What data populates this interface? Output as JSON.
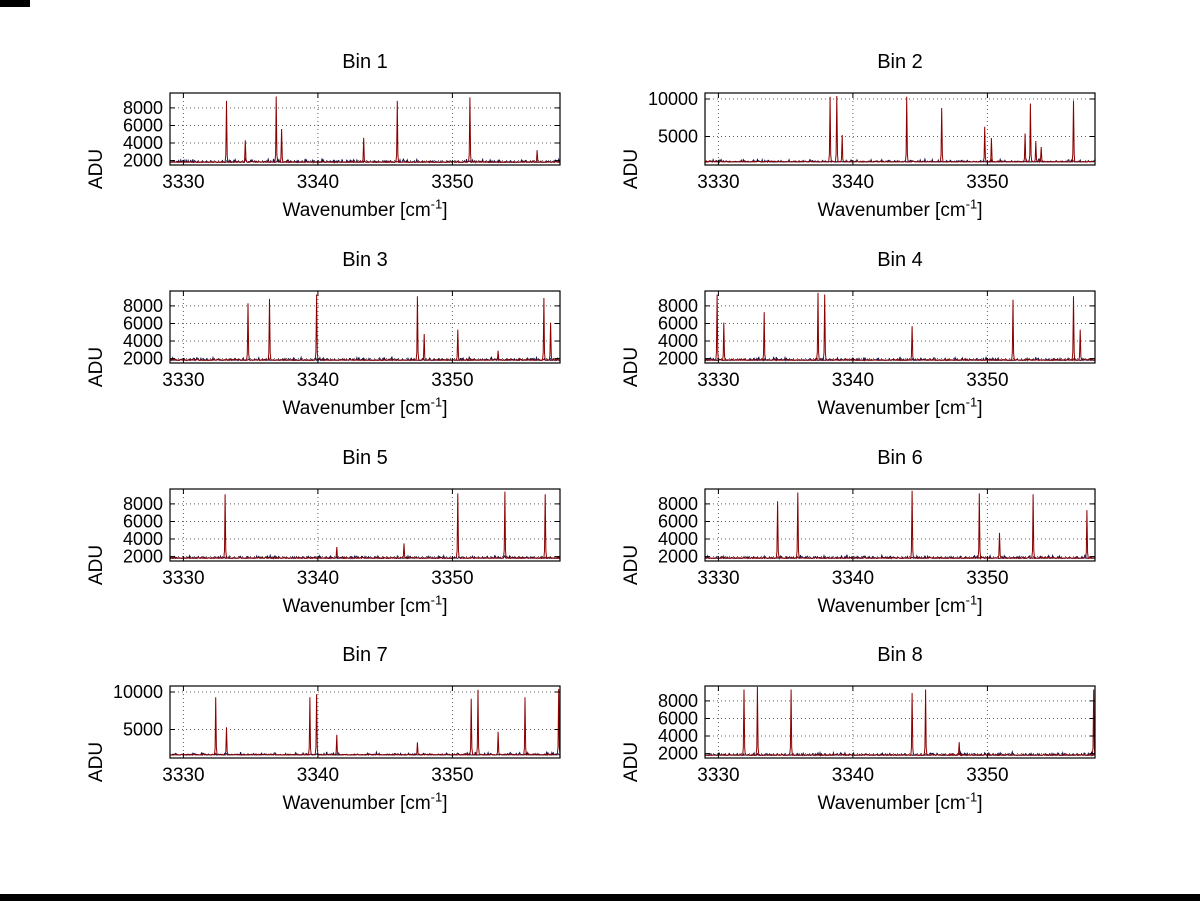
{
  "labels": {
    "ylabel": "ADU",
    "xlabel_main": "Wavenumber [cm",
    "xlabel_sup": "-1",
    "xlabel_end": "]"
  },
  "style": {
    "signal_color": "#8b0000",
    "noise_color": "#14144b",
    "grid_color": "#606060",
    "axis_color": "#000000",
    "background": "#ffffff"
  },
  "chart_data": [
    {
      "type": "line",
      "title": "Bin 1",
      "xlabel": "Wavenumber [cm-1]",
      "ylabel": "ADU",
      "xlim": [
        3329,
        3358
      ],
      "ylim": [
        1500,
        9700
      ],
      "xticks": [
        3330,
        3340,
        3350
      ],
      "yticks": [
        2000,
        4000,
        6000,
        8000
      ],
      "baseline": 1800,
      "peaks": [
        [
          3333.2,
          8800
        ],
        [
          3334.6,
          4300
        ],
        [
          3336.9,
          9300
        ],
        [
          3337.3,
          5600
        ],
        [
          3343.4,
          4600
        ],
        [
          3345.9,
          8800
        ],
        [
          3351.3,
          9200
        ],
        [
          3356.3,
          3200
        ]
      ]
    },
    {
      "type": "line",
      "title": "Bin 2",
      "xlabel": "Wavenumber [cm-1]",
      "ylabel": "ADU",
      "xlim": [
        3329,
        3358
      ],
      "ylim": [
        1200,
        10800
      ],
      "xticks": [
        3330,
        3340,
        3350
      ],
      "yticks": [
        5000,
        10000
      ],
      "baseline": 1600,
      "peaks": [
        [
          3338.3,
          10300
        ],
        [
          3338.8,
          10400
        ],
        [
          3339.2,
          5200
        ],
        [
          3344.0,
          10300
        ],
        [
          3346.6,
          8800
        ],
        [
          3349.8,
          6300
        ],
        [
          3350.3,
          4800
        ],
        [
          3352.8,
          5400
        ],
        [
          3353.2,
          9400
        ],
        [
          3353.6,
          4400
        ],
        [
          3354.0,
          3600
        ],
        [
          3356.4,
          9800
        ]
      ]
    },
    {
      "type": "line",
      "title": "Bin 3",
      "xlabel": "Wavenumber [cm-1]",
      "ylabel": "ADU",
      "xlim": [
        3329,
        3358
      ],
      "ylim": [
        1500,
        9700
      ],
      "xticks": [
        3330,
        3340,
        3350
      ],
      "yticks": [
        2000,
        4000,
        6000,
        8000
      ],
      "baseline": 1800,
      "peaks": [
        [
          3334.8,
          8300
        ],
        [
          3336.4,
          8800
        ],
        [
          3339.9,
          9300
        ],
        [
          3347.4,
          9100
        ],
        [
          3347.9,
          4800
        ],
        [
          3350.4,
          5300
        ],
        [
          3353.4,
          2900
        ],
        [
          3356.8,
          8900
        ],
        [
          3357.3,
          6100
        ]
      ]
    },
    {
      "type": "line",
      "title": "Bin 4",
      "xlabel": "Wavenumber [cm-1]",
      "ylabel": "ADU",
      "xlim": [
        3329,
        3358
      ],
      "ylim": [
        1500,
        9700
      ],
      "xticks": [
        3330,
        3340,
        3350
      ],
      "yticks": [
        2000,
        4000,
        6000,
        8000
      ],
      "baseline": 1800,
      "peaks": [
        [
          3329.9,
          9300
        ],
        [
          3330.4,
          6100
        ],
        [
          3333.4,
          7300
        ],
        [
          3337.4,
          9500
        ],
        [
          3337.9,
          9300
        ],
        [
          3344.4,
          5700
        ],
        [
          3351.9,
          8700
        ],
        [
          3356.4,
          9100
        ],
        [
          3356.9,
          5300
        ]
      ]
    },
    {
      "type": "line",
      "title": "Bin 5",
      "xlabel": "Wavenumber [cm-1]",
      "ylabel": "ADU",
      "xlim": [
        3329,
        3358
      ],
      "ylim": [
        1500,
        9700
      ],
      "xticks": [
        3330,
        3340,
        3350
      ],
      "yticks": [
        2000,
        4000,
        6000,
        8000
      ],
      "baseline": 1800,
      "peaks": [
        [
          3333.1,
          9100
        ],
        [
          3341.4,
          3100
        ],
        [
          3346.4,
          3500
        ],
        [
          3350.4,
          9200
        ],
        [
          3353.9,
          9400
        ],
        [
          3356.9,
          9100
        ]
      ]
    },
    {
      "type": "line",
      "title": "Bin 6",
      "xlabel": "Wavenumber [cm-1]",
      "ylabel": "ADU",
      "xlim": [
        3329,
        3358
      ],
      "ylim": [
        1500,
        9700
      ],
      "xticks": [
        3330,
        3340,
        3350
      ],
      "yticks": [
        2000,
        4000,
        6000,
        8000
      ],
      "baseline": 1800,
      "peaks": [
        [
          3334.4,
          8300
        ],
        [
          3335.9,
          9300
        ],
        [
          3344.4,
          9500
        ],
        [
          3349.4,
          9200
        ],
        [
          3350.9,
          4700
        ],
        [
          3353.4,
          9100
        ],
        [
          3357.4,
          7300
        ]
      ]
    },
    {
      "type": "line",
      "title": "Bin 7",
      "xlabel": "Wavenumber [cm-1]",
      "ylabel": "ADU",
      "xlim": [
        3329,
        3358
      ],
      "ylim": [
        1200,
        10800
      ],
      "xticks": [
        3330,
        3340,
        3350
      ],
      "yticks": [
        5000,
        10000
      ],
      "baseline": 1600,
      "peaks": [
        [
          3332.4,
          9300
        ],
        [
          3333.2,
          5300
        ],
        [
          3339.4,
          9300
        ],
        [
          3339.9,
          9700
        ],
        [
          3341.4,
          4300
        ],
        [
          3347.4,
          3300
        ],
        [
          3351.4,
          9100
        ],
        [
          3351.9,
          10300
        ],
        [
          3353.4,
          4700
        ],
        [
          3355.4,
          9300
        ],
        [
          3357.9,
          10400
        ]
      ]
    },
    {
      "type": "line",
      "title": "Bin 8",
      "xlabel": "Wavenumber [cm-1]",
      "ylabel": "ADU",
      "xlim": [
        3329,
        3358
      ],
      "ylim": [
        1500,
        9700
      ],
      "xticks": [
        3330,
        3340,
        3350
      ],
      "yticks": [
        2000,
        4000,
        6000,
        8000
      ],
      "baseline": 1800,
      "peaks": [
        [
          3331.9,
          9300
        ],
        [
          3332.9,
          9600
        ],
        [
          3335.4,
          9300
        ],
        [
          3344.4,
          8900
        ],
        [
          3345.4,
          9300
        ],
        [
          3347.9,
          3300
        ],
        [
          3357.9,
          9300
        ]
      ]
    }
  ]
}
